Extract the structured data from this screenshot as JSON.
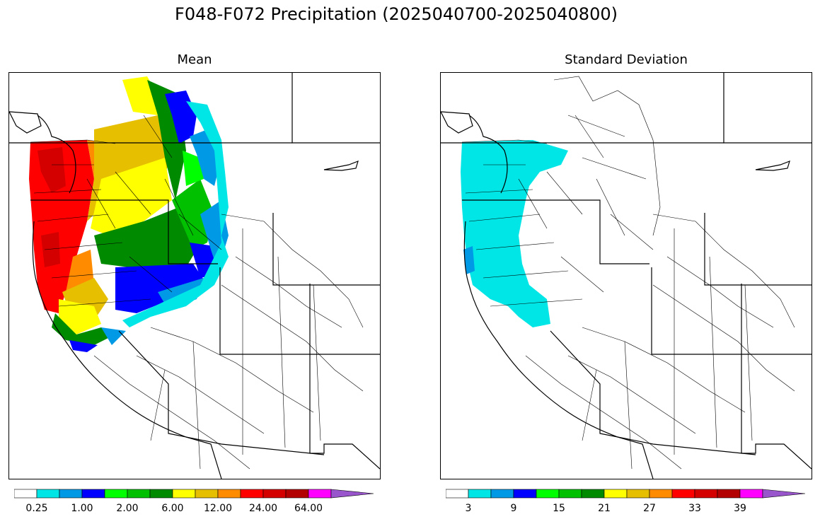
{
  "figure": {
    "title": "F048-F072 Precipitation (2025040700-2025040800)"
  },
  "panels": [
    {
      "title": "Mean",
      "colorbar": {
        "colors": [
          "#ffffff",
          "#00e5e5",
          "#0099e6",
          "#0000ff",
          "#00ff00",
          "#00c000",
          "#008a00",
          "#ffff00",
          "#e5bf00",
          "#ff8c00",
          "#ff0000",
          "#d40000",
          "#b30000",
          "#ff00ff",
          "#9955cc"
        ],
        "tick_labels": [
          "0.25",
          "1.00",
          "2.00",
          "6.00",
          "12.00",
          "24.00",
          "64.00"
        ]
      }
    },
    {
      "title": "Standard Deviation",
      "colorbar": {
        "colors": [
          "#ffffff",
          "#00e5e5",
          "#0099e6",
          "#0000ff",
          "#00ff00",
          "#00c000",
          "#008a00",
          "#ffff00",
          "#e5bf00",
          "#ff8c00",
          "#ff0000",
          "#d40000",
          "#b30000",
          "#ff00ff",
          "#9955cc"
        ],
        "tick_labels": [
          "3",
          "9",
          "15",
          "21",
          "27",
          "33",
          "39"
        ]
      }
    }
  ]
}
